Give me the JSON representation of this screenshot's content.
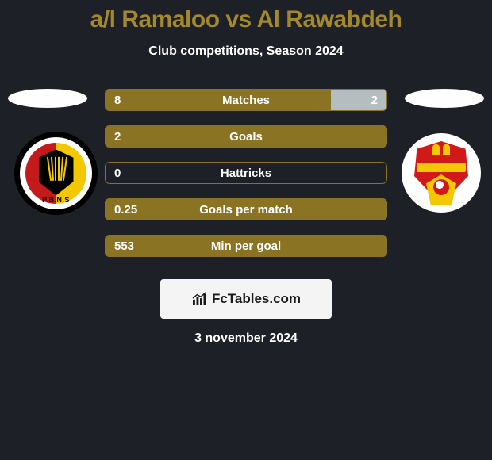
{
  "background_color": "#1d2026",
  "title": "a/l Ramaloo vs Al Rawabdeh",
  "title_color": "#a3892c",
  "title_fontsize": 30,
  "subtitle": "Club competitions, Season 2024",
  "subtitle_fontsize": 16,
  "date": "3 november 2024",
  "halo_color": "#ffffff",
  "left_crest": {
    "text": "P.B.N.S"
  },
  "brand": {
    "text": "FcTables.com"
  },
  "stats": [
    {
      "label": "Matches",
      "left_value": "8",
      "right_value": "2",
      "left_ratio": 0.8,
      "right_ratio": 0.2,
      "left_fill": "#8a7323",
      "right_fill": "#b4bdc0",
      "outline": "#8a7323"
    },
    {
      "label": "Goals",
      "left_value": "2",
      "right_value": "",
      "left_ratio": 1.0,
      "right_ratio": 0.0,
      "left_fill": "#8a7323",
      "right_fill": "transparent",
      "outline": "#8a7323"
    },
    {
      "label": "Hattricks",
      "left_value": "0",
      "right_value": "",
      "left_ratio": 0.0,
      "right_ratio": 0.0,
      "left_fill": "transparent",
      "right_fill": "transparent",
      "outline": "#8a7323"
    },
    {
      "label": "Goals per match",
      "left_value": "0.25",
      "right_value": "",
      "left_ratio": 1.0,
      "right_ratio": 0.0,
      "left_fill": "#8a7323",
      "right_fill": "transparent",
      "outline": "#8a7323"
    },
    {
      "label": "Min per goal",
      "left_value": "553",
      "right_value": "",
      "left_ratio": 1.0,
      "right_ratio": 0.0,
      "left_fill": "#8a7323",
      "right_fill": "transparent",
      "outline": "#8a7323"
    }
  ]
}
